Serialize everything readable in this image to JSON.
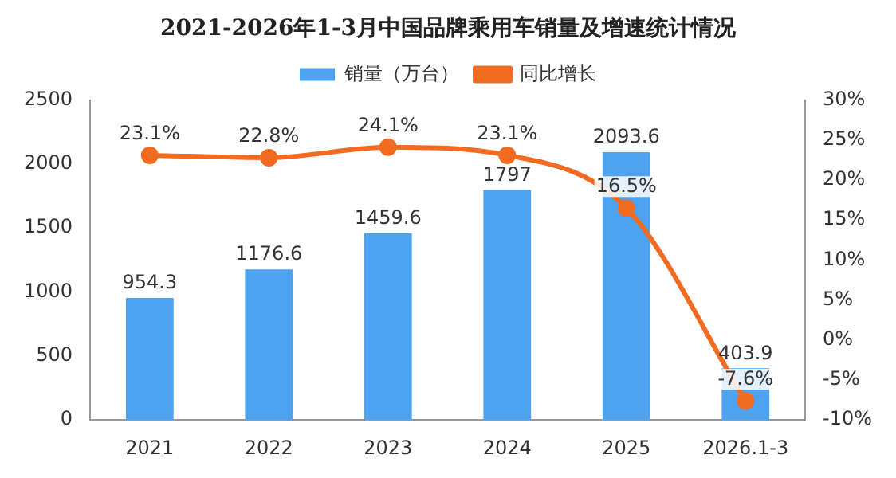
{
  "chart_data": {
    "type": "bar",
    "title": "2021-2026年1-3月中国品牌乘用车销量及增速统计情况",
    "categories": [
      "2021",
      "2022",
      "2023",
      "2024",
      "2025",
      "2026.1-3"
    ],
    "series": [
      {
        "name": "销量（万台）",
        "color": "#4da3f0",
        "values": [
          954.3,
          1176.6,
          1459.6,
          1797,
          2093.6,
          403.9
        ],
        "value_labels": [
          "954.3",
          "1176.6",
          "1459.6",
          "1797",
          "2093.6",
          "403.9"
        ]
      },
      {
        "name": "同比增长",
        "type": "line",
        "axis": "y2",
        "color": "#f26b21",
        "marker": "circle",
        "values": [
          23.1,
          22.8,
          24.1,
          23.1,
          16.5,
          -7.6
        ],
        "value_labels": [
          "23.1%",
          "22.8%",
          "24.1%",
          "23.1%",
          "16.5%",
          "-7.6%"
        ]
      }
    ],
    "ylim": [
      0,
      2500
    ],
    "yticks": [
      0,
      500,
      1000,
      1500,
      2000,
      2500
    ],
    "y2lim": [
      -10,
      30
    ],
    "y2ticks": [
      {
        "value": -10,
        "label": "-10%"
      },
      {
        "value": -5,
        "label": "-5%"
      },
      {
        "value": 0,
        "label": "0%"
      },
      {
        "value": 5,
        "label": "5%"
      },
      {
        "value": 10,
        "label": "10%"
      },
      {
        "value": 15,
        "label": "15%"
      },
      {
        "value": 20,
        "label": "20%"
      },
      {
        "value": 25,
        "label": "25%"
      },
      {
        "value": 30,
        "label": "30%"
      }
    ],
    "grid": false,
    "legend": "top"
  }
}
